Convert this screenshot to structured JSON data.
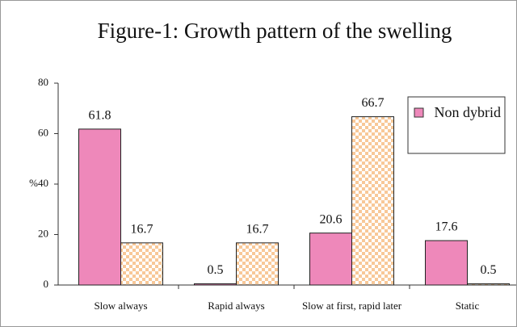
{
  "chart_data": {
    "type": "bar",
    "title": "Figure-1: Growth pattern of the swelling",
    "categories": [
      "Slow always",
      "Rapid always",
      "Slow at first, rapid later",
      "Static"
    ],
    "series": [
      {
        "name": "Non dybrid",
        "color": "#ee88ba",
        "values": [
          61.8,
          0.5,
          20.6,
          17.6
        ]
      },
      {
        "color": "#f8c898",
        "values": [
          16.7,
          16.7,
          66.7,
          0.5
        ]
      }
    ],
    "ylim": [
      0,
      80
    ],
    "yticks": [
      0,
      20,
      {
        "value": 40,
        "label": "%40"
      },
      60,
      80
    ],
    "legend": "upper right"
  }
}
